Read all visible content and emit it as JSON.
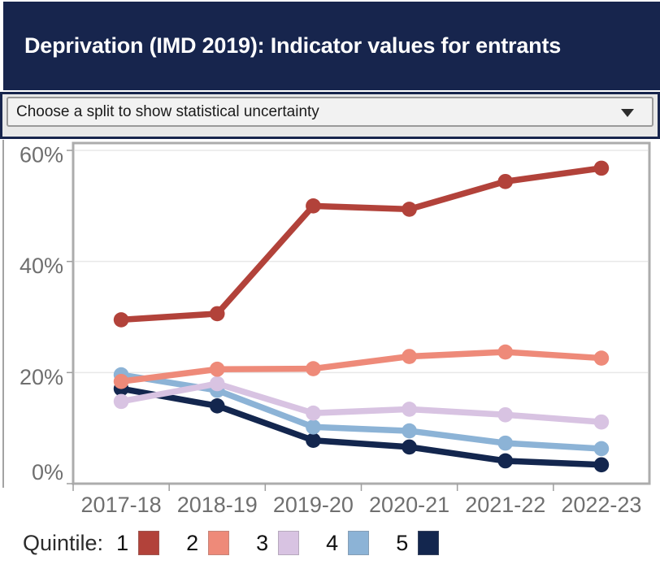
{
  "header": {
    "title": "Deprivation (IMD 2019): Indicator values for entrants"
  },
  "controls": {
    "split_select": {
      "value": "Choose a split to show statistical uncertainty",
      "icon": "chevron-down-icon"
    }
  },
  "chart_data": {
    "type": "line",
    "title": "Deprivation (IMD 2019): Indicator values for entrants",
    "categories": [
      "2017-18",
      "2018-19",
      "2019-20",
      "2020-21",
      "2021-22",
      "2022-23"
    ],
    "series": [
      {
        "name": "Quintile 1",
        "color": "#b2423a",
        "values": [
          29.5,
          30.6,
          50.0,
          49.4,
          54.4,
          56.8
        ]
      },
      {
        "name": "Quintile 2",
        "color": "#ee8a79",
        "values": [
          18.4,
          20.6,
          20.7,
          22.9,
          23.7,
          22.6
        ]
      },
      {
        "name": "Quintile 3",
        "color": "#d8c3e2",
        "values": [
          14.8,
          18.0,
          12.7,
          13.4,
          12.4,
          11.1
        ]
      },
      {
        "name": "Quintile 4",
        "color": "#8cb3d6",
        "values": [
          19.6,
          16.8,
          10.2,
          9.5,
          7.3,
          6.3
        ]
      },
      {
        "name": "Quintile 5",
        "color": "#13264e",
        "values": [
          17.1,
          14.0,
          7.8,
          6.6,
          4.1,
          3.4
        ]
      }
    ],
    "xlabel": "",
    "ylabel": "",
    "ylim": [
      0,
      60
    ],
    "yticks": [
      {
        "value": 0,
        "label": "0%"
      },
      {
        "value": 20,
        "label": "20%"
      },
      {
        "value": 40,
        "label": "40%"
      },
      {
        "value": 60,
        "label": "60%"
      }
    ],
    "grid": true,
    "legend_position": "bottom",
    "marker": "circle"
  },
  "legend": {
    "label": "Quintile:",
    "items": [
      {
        "label": "1",
        "color": "#b2423a"
      },
      {
        "label": "2",
        "color": "#ee8a79"
      },
      {
        "label": "3",
        "color": "#d8c3e2"
      },
      {
        "label": "4",
        "color": "#8cb3d6"
      },
      {
        "label": "5",
        "color": "#13264e"
      }
    ]
  },
  "colors": {
    "header_bg": "#17254d",
    "header_text": "#ffffff",
    "panel_border": "#17254d",
    "panel_bg": "#e8e8e8",
    "select_bg": "#f2f2f2",
    "select_border": "#9a9a9a",
    "axis_frame": "#acacac",
    "gridline": "#e8e8e8",
    "tick": "#9e9e9e",
    "axis_label": "#6f6f6f"
  }
}
